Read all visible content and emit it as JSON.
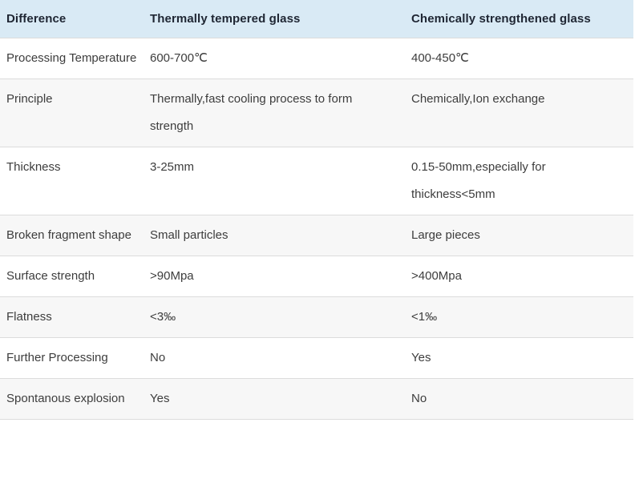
{
  "table": {
    "columns": [
      {
        "label": "Difference"
      },
      {
        "label": "Thermally tempered glass"
      },
      {
        "label": "Chemically strengthened glass"
      }
    ],
    "rows": [
      {
        "difference": "Processing Temperature",
        "thermal": "600-700℃",
        "chemical": "400-450℃"
      },
      {
        "difference": "Principle",
        "thermal": "Thermally,fast cooling process to form strength",
        "chemical": "Chemically,Ion exchange"
      },
      {
        "difference": "Thickness",
        "thermal": "3-25mm",
        "chemical": "0.15-50mm,especially for thickness<5mm"
      },
      {
        "difference": "Broken fragment shape",
        "thermal": "Small particles",
        "chemical": "Large pieces"
      },
      {
        "difference": "Surface strength",
        "thermal": ">90Mpa",
        "chemical": ">400Mpa"
      },
      {
        "difference": "Flatness",
        "thermal": "<3‰",
        "chemical": "<1‰"
      },
      {
        "difference": "Further Processing",
        "thermal": "No",
        "chemical": "Yes"
      },
      {
        "difference": "Spontanous explosion",
        "thermal": "Yes",
        "chemical": "No"
      }
    ],
    "colors": {
      "header_bg": "#d9eaf5",
      "stripe_bg": "#f7f7f7",
      "border": "#dcdcdc",
      "header_text": "#1f2633",
      "body_text": "#3d3d3d"
    }
  }
}
